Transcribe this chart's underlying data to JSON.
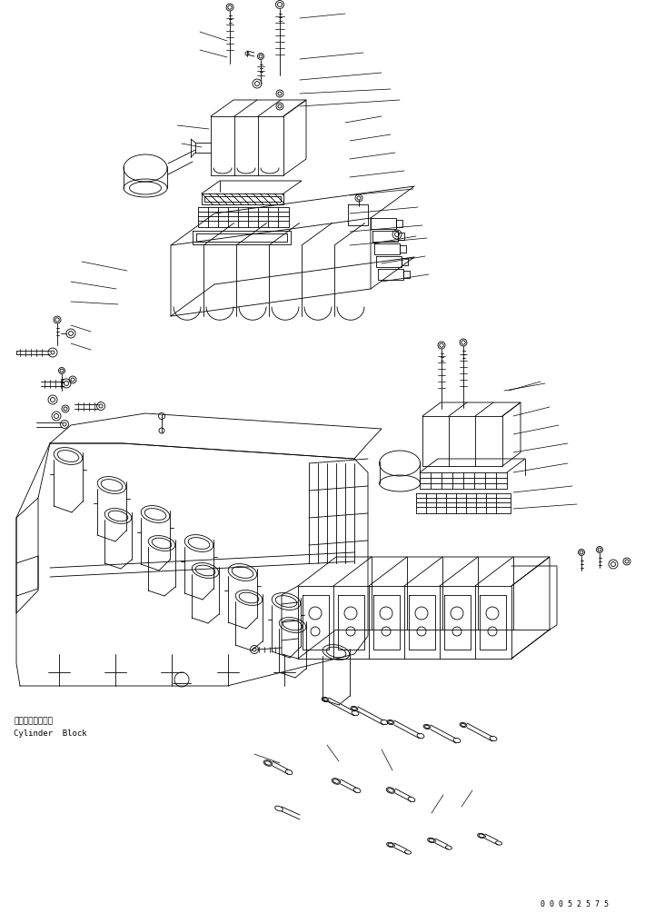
{
  "background_color": "#ffffff",
  "line_color": "#000000",
  "text_color": "#000000",
  "figure_width": 7.21,
  "figure_height": 10.05,
  "dpi": 100,
  "label_japanese": "シリンダブロック",
  "label_english": "Cylinder  Block",
  "watermark": "0 0 0 5 2 5 7 5"
}
